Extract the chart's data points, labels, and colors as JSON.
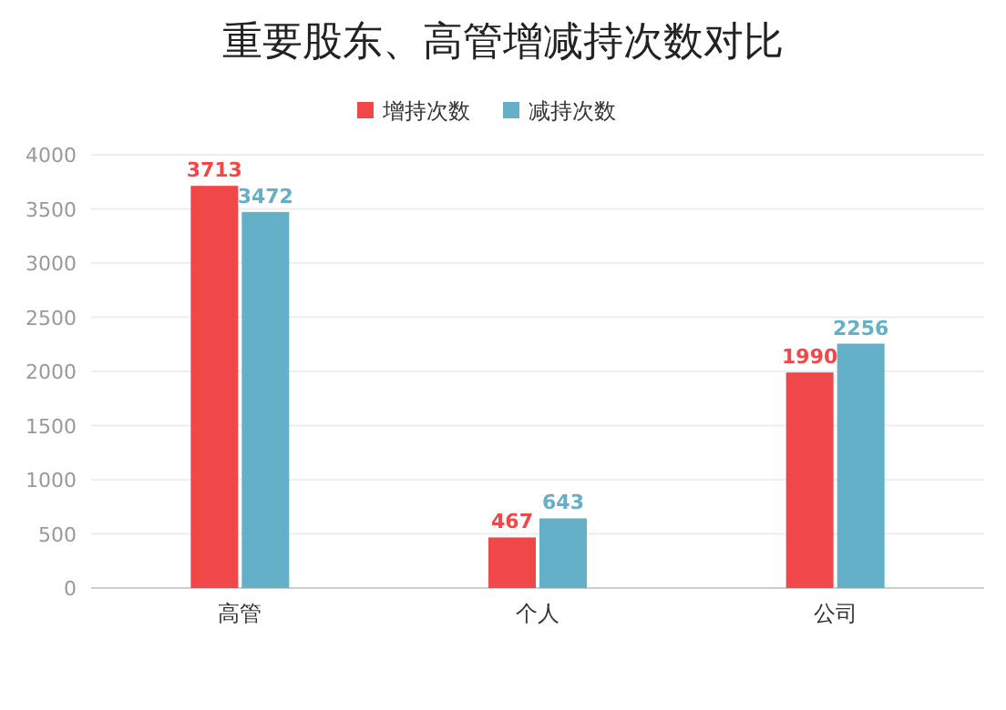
{
  "chart_data": {
    "type": "bar",
    "title": "重要股东、高管增减持次数对比",
    "categories": [
      "高管",
      "个人",
      "公司"
    ],
    "series": [
      {
        "name": "增持次数",
        "color": "#f04848",
        "values": [
          3713,
          467,
          1990
        ]
      },
      {
        "name": "减持次数",
        "color": "#63b0c8",
        "values": [
          3472,
          643,
          2256
        ]
      }
    ],
    "ylim": [
      0,
      4000
    ],
    "yticks": [
      0,
      500,
      1000,
      1500,
      2000,
      2500,
      3000,
      3500,
      4000
    ],
    "grid": "y",
    "legend": "top",
    "data_labels": true
  }
}
